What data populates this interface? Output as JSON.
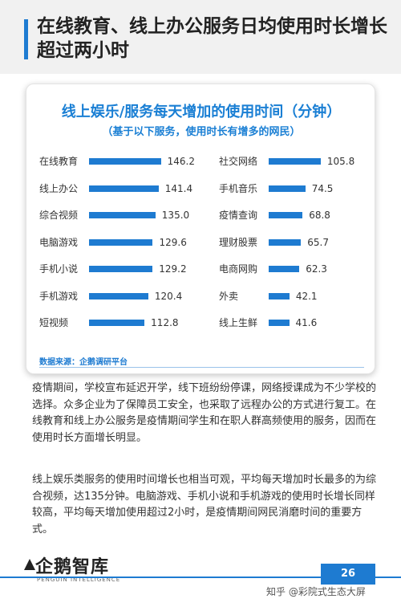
{
  "header": {
    "title": "在线教育、线上办公服务日均使用时长增长超过两小时"
  },
  "chart_data": {
    "type": "bar",
    "title": "线上娱乐/服务每天增加的使用时间（分钟）",
    "subtitle": "（基于以下服务，使用时长有增多的网民）",
    "source": "数据来源：企鹅调研平台",
    "xlim": [
      0,
      150
    ],
    "grid": false,
    "left": {
      "categories": [
        "在线教育",
        "线上办公",
        "综合视频",
        "电脑游戏",
        "手机小说",
        "手机游戏",
        "短视频"
      ],
      "values": [
        146.2,
        141.4,
        135.0,
        129.6,
        129.2,
        120.4,
        112.8
      ],
      "labels": [
        "146.2",
        "141.4",
        "135.0",
        "129.6",
        "129.2",
        "120.4",
        "112.8"
      ]
    },
    "right": {
      "categories": [
        "社交网络",
        "手机音乐",
        "疫情查询",
        "理财股票",
        "电商网购",
        "外卖",
        "线上生鲜"
      ],
      "values": [
        105.8,
        74.5,
        68.8,
        65.7,
        62.3,
        42.1,
        41.6
      ],
      "labels": [
        "105.8",
        "74.5",
        "68.8",
        "65.7",
        "62.3",
        "42.1",
        "41.6"
      ]
    },
    "bar_color": "#1e7bd1"
  },
  "body": {
    "p1": "疫情期间，学校宣布延迟开学，线下班纷纷停课，网络授课成为不少学校的选择。众多企业为了保障员工安全，也采取了远程办公的方式进行复工。在线教育和线上办公服务是疫情期间学生和在职人群高频使用的服务，因而在使用时长方面增长明显。",
    "p2": "线上娱乐类服务的使用时间增长也相当可观，平均每天增加时长最多的为综合视频，达135分钟。电脑游戏、手机小说和手机游戏的使用时长增长同样较高，平均每天增加使用超过2小时，是疫情期间网民消磨时间的重要方式。"
  },
  "footer": {
    "logo_text": "企鹅智库",
    "logo_sub": "PENGUIN INTELLIGENCE",
    "page_number": "26",
    "watermark": "知乎 @彩院式生态大屏"
  }
}
